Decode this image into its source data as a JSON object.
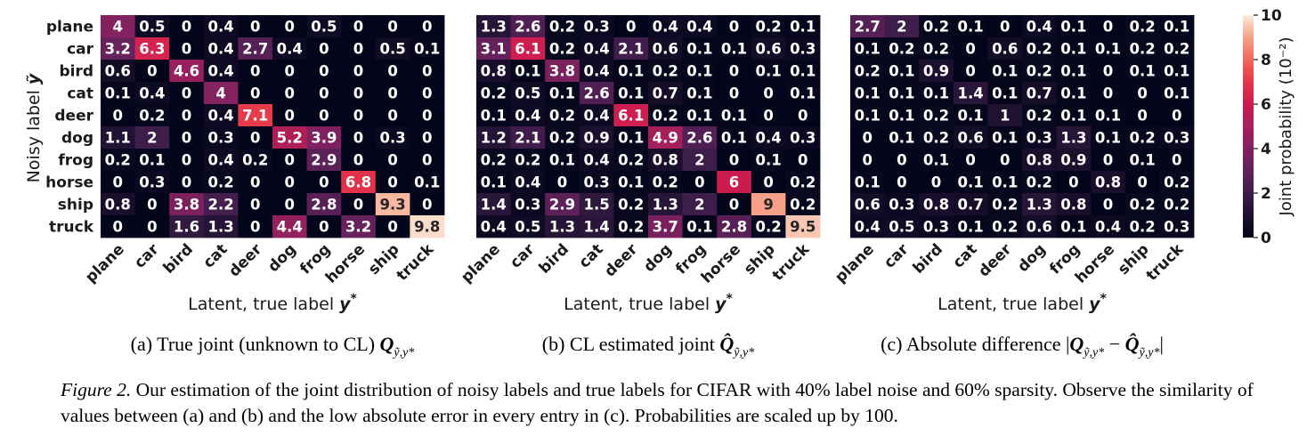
{
  "figure": {
    "y_axis_label": "Noisy label",
    "y_axis_symbol": "ỹ",
    "x_axis_label": "Latent, true label",
    "x_axis_symbol": "y*",
    "colorbar_label": "Joint probability (10⁻²)"
  },
  "chart_data": [
    {
      "type": "heatmap",
      "subcaption": "(a) True joint (unknown to CL) Q",
      "subcaption_sub": "ỹ,y*",
      "x_categories": [
        "plane",
        "car",
        "bird",
        "cat",
        "deer",
        "dog",
        "frog",
        "horse",
        "ship",
        "truck"
      ],
      "y_categories": [
        "plane",
        "car",
        "bird",
        "cat",
        "deer",
        "dog",
        "frog",
        "horse",
        "ship",
        "truck"
      ],
      "xlabel": "Latent, true label y*",
      "ylabel": "Noisy label ỹ",
      "zlim": [
        0,
        10
      ],
      "values": [
        [
          4,
          0.5,
          0,
          0.4,
          0,
          0,
          0.5,
          0,
          0,
          0
        ],
        [
          3.2,
          6.3,
          0,
          0.4,
          2.7,
          0.4,
          0,
          0,
          0.5,
          0.1
        ],
        [
          0.6,
          0,
          4.6,
          0.4,
          0,
          0,
          0,
          0,
          0,
          0
        ],
        [
          0.1,
          0.4,
          0,
          4,
          0,
          0,
          0,
          0,
          0,
          0
        ],
        [
          0,
          0.2,
          0,
          0.4,
          7.1,
          0,
          0,
          0,
          0,
          0
        ],
        [
          1.1,
          2,
          0,
          0.3,
          0,
          5.2,
          3.9,
          0,
          0.3,
          0
        ],
        [
          0.2,
          0.1,
          0,
          0.4,
          0.2,
          0,
          2.9,
          0,
          0,
          0
        ],
        [
          0,
          0.3,
          0,
          0.2,
          0,
          0,
          0,
          6.8,
          0,
          0.1
        ],
        [
          0.8,
          0,
          3.8,
          2.2,
          0,
          0,
          2.8,
          0,
          9.3,
          0
        ],
        [
          0,
          0,
          1.6,
          1.3,
          0,
          4.4,
          0,
          3.2,
          0,
          9.8
        ]
      ]
    },
    {
      "type": "heatmap",
      "subcaption": "(b) CL estimated joint Q̂",
      "subcaption_sub": "ỹ,y*",
      "x_categories": [
        "plane",
        "car",
        "bird",
        "cat",
        "deer",
        "dog",
        "frog",
        "horse",
        "ship",
        "truck"
      ],
      "y_categories": [
        "plane",
        "car",
        "bird",
        "cat",
        "deer",
        "dog",
        "frog",
        "horse",
        "ship",
        "truck"
      ],
      "xlabel": "Latent, true label y*",
      "zlim": [
        0,
        10
      ],
      "values": [
        [
          1.3,
          2.6,
          0.2,
          0.3,
          0,
          0.4,
          0.4,
          0,
          0.2,
          0.1
        ],
        [
          3.1,
          6.1,
          0.2,
          0.4,
          2.1,
          0.6,
          0.1,
          0.1,
          0.6,
          0.3
        ],
        [
          0.8,
          0.1,
          3.8,
          0.4,
          0.1,
          0.2,
          0.1,
          0,
          0.1,
          0.1
        ],
        [
          0.2,
          0.5,
          0.1,
          2.6,
          0.1,
          0.7,
          0.1,
          0,
          0,
          0.1
        ],
        [
          0.1,
          0.4,
          0.2,
          0.4,
          6.1,
          0.2,
          0.1,
          0.1,
          0,
          0
        ],
        [
          1.2,
          2.1,
          0.2,
          0.9,
          0.1,
          4.9,
          2.6,
          0.1,
          0.4,
          0.3
        ],
        [
          0.2,
          0.2,
          0.1,
          0.4,
          0.2,
          0.8,
          2,
          0,
          0.1,
          0
        ],
        [
          0.1,
          0.4,
          0,
          0.3,
          0.1,
          0.2,
          0,
          6,
          0,
          0.2
        ],
        [
          1.4,
          0.3,
          2.9,
          1.5,
          0.2,
          1.3,
          2,
          0,
          9,
          0.2
        ],
        [
          0.4,
          0.5,
          1.3,
          1.4,
          0.2,
          3.7,
          0.1,
          2.8,
          0.2,
          9.5
        ]
      ]
    },
    {
      "type": "heatmap",
      "subcaption": "(c) Absolute difference |Q",
      "subcaption_mid": " − Q̂",
      "subcaption_end": "|",
      "subcaption_sub": "ỹ,y*",
      "x_categories": [
        "plane",
        "car",
        "bird",
        "cat",
        "deer",
        "dog",
        "frog",
        "horse",
        "ship",
        "truck"
      ],
      "y_categories": [
        "plane",
        "car",
        "bird",
        "cat",
        "deer",
        "dog",
        "frog",
        "horse",
        "ship",
        "truck"
      ],
      "xlabel": "Latent, true label y*",
      "zlim": [
        0,
        10
      ],
      "colorbar_ticks": [
        0,
        2,
        4,
        6,
        8,
        10
      ],
      "colorbar_label": "Joint probability (10⁻²)",
      "values": [
        [
          2.7,
          2,
          0.2,
          0.1,
          0,
          0.4,
          0.1,
          0,
          0.2,
          0.1
        ],
        [
          0.1,
          0.2,
          0.2,
          0,
          0.6,
          0.2,
          0.1,
          0.1,
          0.2,
          0.2
        ],
        [
          0.2,
          0.1,
          0.9,
          0,
          0.1,
          0.2,
          0.1,
          0,
          0.1,
          0.1
        ],
        [
          0.1,
          0.1,
          0.1,
          1.4,
          0.1,
          0.7,
          0.1,
          0,
          0,
          0.1
        ],
        [
          0.1,
          0.1,
          0.2,
          0.1,
          1,
          0.2,
          0.1,
          0.1,
          0,
          0
        ],
        [
          0,
          0.1,
          0.2,
          0.6,
          0.1,
          0.3,
          1.3,
          0.1,
          0.2,
          0.3
        ],
        [
          0,
          0,
          0.1,
          0,
          0,
          0.8,
          0.9,
          0,
          0.1,
          0
        ],
        [
          0.1,
          0,
          0,
          0.1,
          0.1,
          0.2,
          0,
          0.8,
          0,
          0.2
        ],
        [
          0.6,
          0.3,
          0.8,
          0.7,
          0.2,
          1.3,
          0.8,
          0,
          0.2,
          0.2
        ],
        [
          0.4,
          0.5,
          0.3,
          0.1,
          0.2,
          0.6,
          0.1,
          0.4,
          0.2,
          0.3
        ]
      ]
    }
  ],
  "caption": {
    "lead": "Figure 2.",
    "text": " Our estimation of the joint distribution of noisy labels and true labels for CIFAR with 40% label noise and 60% sparsity. Observe the similarity of values between (a) and (b) and the low absolute error in every entry in (c). Probabilities are scaled up by 100."
  }
}
